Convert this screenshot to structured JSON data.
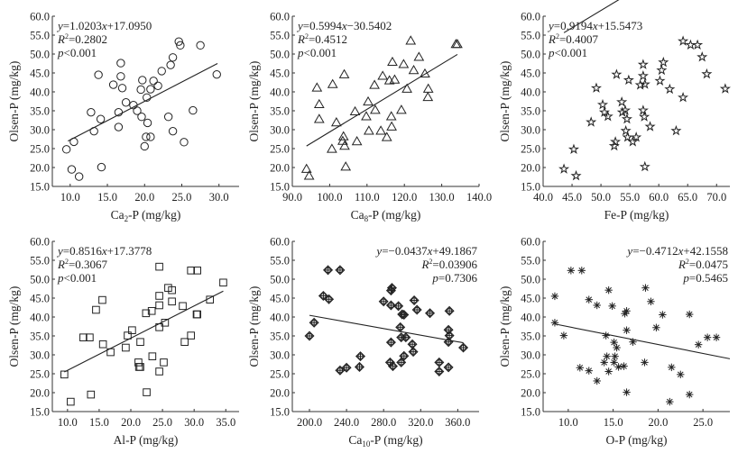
{
  "chart_data": [
    {
      "type": "scatter",
      "xlabel": "Ca2-P (mg/kg)",
      "xlabel_main": "Ca",
      "xlabel_sub": "2",
      "xlabel_rest": "-P (mg/kg)",
      "ylabel": "Olsen-P (mg/kg)",
      "xlim": [
        7.6,
        32.7
      ],
      "ylim": [
        15,
        60
      ],
      "xticks": [
        "10.0",
        "15.0",
        "20.0",
        "25.0",
        "30.0"
      ],
      "yticks": [
        "15.0",
        "20.0",
        "25.0",
        "30.0",
        "35.0",
        "40.0",
        "45.0",
        "50.0",
        "55.0",
        "60.0"
      ],
      "marker": "circle",
      "equation": "y=1.0203x+17.0950",
      "r2": "R2=0.2802",
      "p": "p<0.001",
      "annotation_position": "top-left",
      "fit": {
        "slope": 1.0203,
        "intercept": 17.095,
        "x_range": [
          9.7,
          29.8
        ]
      },
      "points": [
        [
          9.5,
          24.8
        ],
        [
          10.2,
          19.5
        ],
        [
          10.5,
          26.8
        ],
        [
          11.2,
          17.6
        ],
        [
          12.8,
          34.6
        ],
        [
          13.2,
          29.6
        ],
        [
          13.8,
          44.5
        ],
        [
          14.1,
          32.8
        ],
        [
          14.2,
          20.1
        ],
        [
          15.8,
          41.9
        ],
        [
          16.5,
          34.6
        ],
        [
          16.5,
          30.7
        ],
        [
          16.8,
          44.1
        ],
        [
          16.8,
          47.6
        ],
        [
          17.0,
          41.0
        ],
        [
          17.5,
          37.2
        ],
        [
          18.5,
          36.5
        ],
        [
          19.0,
          35.0
        ],
        [
          19.5,
          40.6
        ],
        [
          19.6,
          33.4
        ],
        [
          19.7,
          43.1
        ],
        [
          20.0,
          25.6
        ],
        [
          20.2,
          28.1
        ],
        [
          20.3,
          38.5
        ],
        [
          20.4,
          31.8
        ],
        [
          20.8,
          40.7
        ],
        [
          20.8,
          28.1
        ],
        [
          21.2,
          42.9
        ],
        [
          21.8,
          41.6
        ],
        [
          22.3,
          45.5
        ],
        [
          23.2,
          33.4
        ],
        [
          23.5,
          47.1
        ],
        [
          23.8,
          29.6
        ],
        [
          23.8,
          49.1
        ],
        [
          24.6,
          53.3
        ],
        [
          24.8,
          52.3
        ],
        [
          25.3,
          26.7
        ],
        [
          26.5,
          35.1
        ],
        [
          27.5,
          52.3
        ],
        [
          29.7,
          44.6
        ]
      ]
    },
    {
      "type": "scatter",
      "xlabel": "Ca8-P (mg/kg)",
      "xlabel_main": "Ca",
      "xlabel_sub": "8",
      "xlabel_rest": "-P (mg/kg)",
      "ylabel": "Olsen-P (mg/kg)",
      "xlim": [
        90,
        140
      ],
      "ylim": [
        15,
        60
      ],
      "xticks": [
        "90.0",
        "100.0",
        "110.0",
        "120.0",
        "130.0",
        "140.0"
      ],
      "yticks": [
        "15.0",
        "20.0",
        "25.0",
        "30.0",
        "35.0",
        "40.0",
        "45.0",
        "50.0",
        "55.0",
        "60.0"
      ],
      "marker": "triangle",
      "equation": "y=0.5994x−30.5402",
      "r2": "R2=0.4512",
      "p": "p<0.001",
      "annotation_position": "top-left",
      "fit": {
        "slope": 0.5994,
        "intercept": -30.5402,
        "x_range": [
          93.8,
          134.2
        ]
      },
      "points": [
        [
          93.8,
          19.6
        ],
        [
          94.5,
          17.8
        ],
        [
          96.6,
          41.1
        ],
        [
          97.2,
          36.7
        ],
        [
          97.2,
          32.8
        ],
        [
          100.6,
          24.9
        ],
        [
          100.8,
          42.0
        ],
        [
          101.8,
          31.9
        ],
        [
          103.5,
          27.0
        ],
        [
          103.7,
          28.2
        ],
        [
          103.9,
          44.6
        ],
        [
          104.0,
          25.7
        ],
        [
          104.3,
          20.2
        ],
        [
          106.8,
          34.8
        ],
        [
          107.3,
          26.9
        ],
        [
          109.8,
          33.5
        ],
        [
          110.3,
          37.4
        ],
        [
          110.5,
          29.7
        ],
        [
          112.0,
          41.8
        ],
        [
          112.2,
          35.2
        ],
        [
          113.7,
          29.7
        ],
        [
          114.2,
          44.2
        ],
        [
          115.3,
          28.0
        ],
        [
          116.0,
          43.0
        ],
        [
          116.5,
          33.5
        ],
        [
          116.6,
          30.8
        ],
        [
          116.8,
          47.9
        ],
        [
          117.4,
          43.2
        ],
        [
          119.2,
          35.2
        ],
        [
          119.8,
          47.3
        ],
        [
          120.7,
          40.8
        ],
        [
          121.7,
          53.5
        ],
        [
          122.5,
          45.7
        ],
        [
          123.9,
          49.2
        ],
        [
          125.5,
          44.8
        ],
        [
          126.3,
          38.6
        ],
        [
          126.4,
          40.8
        ],
        [
          133.8,
          52.6
        ],
        [
          134.2,
          52.6
        ]
      ]
    },
    {
      "type": "scatter",
      "xlabel": "Fe-P (mg/kg)",
      "xlabel_main": "Fe-P (mg/kg)",
      "xlabel_sub": "",
      "xlabel_rest": "",
      "ylabel": "Olsen-P (mg/kg)",
      "xlim": [
        40,
        72.3
      ],
      "ylim": [
        15,
        60
      ],
      "xticks": [
        "40.0",
        "45.0",
        "50.0",
        "55.0",
        "60.0",
        "65.0",
        "70.0"
      ],
      "yticks": [
        "15.0",
        "20.0",
        "25.0",
        "30.0",
        "35.0",
        "40.0",
        "45.0",
        "50.0",
        "55.0",
        "60.0"
      ],
      "marker": "star",
      "equation": "y=0.9194x+15.5473",
      "r2": "R2=0.4007",
      "p": "p<0.001",
      "annotation_position": "top-left",
      "fit": {
        "slope": 0.9194,
        "intercept": 15.5473,
        "x_range": [
          43.6,
          71.5
        ]
      },
      "points": [
        [
          43.6,
          19.6
        ],
        [
          45.3,
          24.8
        ],
        [
          45.7,
          17.8
        ],
        [
          48.3,
          32.0
        ],
        [
          49.2,
          41.0
        ],
        [
          50.3,
          36.6
        ],
        [
          50.6,
          34.6
        ],
        [
          51.2,
          33.5
        ],
        [
          52.3,
          25.7
        ],
        [
          52.5,
          26.8
        ],
        [
          52.7,
          44.6
        ],
        [
          53.6,
          37.3
        ],
        [
          53.7,
          34.6
        ],
        [
          54.2,
          35.1
        ],
        [
          54.3,
          29.7
        ],
        [
          54.5,
          32.8
        ],
        [
          54.6,
          28.0
        ],
        [
          54.8,
          43.1
        ],
        [
          55.5,
          26.8
        ],
        [
          56.1,
          28.0
        ],
        [
          56.8,
          41.8
        ],
        [
          57.3,
          47.2
        ],
        [
          57.3,
          44.2
        ],
        [
          57.3,
          35.1
        ],
        [
          57.5,
          33.4
        ],
        [
          57.6,
          42.0
        ],
        [
          57.6,
          20.2
        ],
        [
          58.5,
          30.8
        ],
        [
          60.2,
          42.9
        ],
        [
          60.5,
          45.7
        ],
        [
          60.8,
          47.8
        ],
        [
          61.9,
          40.7
        ],
        [
          63.0,
          29.7
        ],
        [
          64.2,
          38.5
        ],
        [
          64.2,
          53.4
        ],
        [
          65.5,
          52.4
        ],
        [
          66.7,
          52.4
        ],
        [
          67.5,
          49.2
        ],
        [
          68.3,
          44.7
        ],
        [
          71.5,
          40.8
        ]
      ]
    },
    {
      "type": "scatter",
      "xlabel": "Al-P (mg/kg)",
      "xlabel_main": "Al-P (mg/kg)",
      "xlabel_sub": "",
      "xlabel_rest": "",
      "ylabel": "Olsen-P (mg/kg)",
      "xlim": [
        7.6,
        37.1
      ],
      "ylim": [
        15,
        60
      ],
      "xticks": [
        "10.0",
        "15.0",
        "20.0",
        "25.0",
        "30.0",
        "35.0"
      ],
      "yticks": [
        "15.0",
        "20.0",
        "25.0",
        "30.0",
        "35.0",
        "40.0",
        "45.0",
        "50.0",
        "55.0",
        "60.0"
      ],
      "marker": "square",
      "equation": "y=0.8516x+17.3778",
      "r2": "R2=0.3067",
      "p": "p<0.001",
      "annotation_position": "top-left",
      "fit": {
        "slope": 0.8516,
        "intercept": 17.3778,
        "x_range": [
          9.5,
          34.6
        ]
      },
      "points": [
        [
          9.5,
          24.8
        ],
        [
          10.5,
          17.6
        ],
        [
          12.5,
          34.6
        ],
        [
          13.5,
          34.6
        ],
        [
          13.7,
          19.5
        ],
        [
          14.5,
          41.9
        ],
        [
          15.5,
          44.5
        ],
        [
          15.6,
          32.8
        ],
        [
          16.8,
          30.7
        ],
        [
          19.2,
          31.9
        ],
        [
          19.5,
          35.1
        ],
        [
          20.2,
          36.5
        ],
        [
          21.2,
          28.0
        ],
        [
          21.3,
          26.8
        ],
        [
          21.5,
          26.8
        ],
        [
          21.5,
          33.4
        ],
        [
          22.4,
          41.0
        ],
        [
          22.5,
          20.1
        ],
        [
          23.3,
          41.6
        ],
        [
          23.4,
          29.6
        ],
        [
          24.5,
          53.3
        ],
        [
          24.5,
          45.6
        ],
        [
          24.5,
          43.1
        ],
        [
          24.5,
          37.3
        ],
        [
          24.5,
          25.6
        ],
        [
          25.2,
          28.0
        ],
        [
          25.4,
          38.5
        ],
        [
          25.9,
          47.7
        ],
        [
          26.5,
          47.1
        ],
        [
          26.5,
          44.1
        ],
        [
          28.2,
          42.9
        ],
        [
          28.5,
          33.4
        ],
        [
          29.5,
          52.3
        ],
        [
          29.5,
          35.1
        ],
        [
          30.4,
          40.7
        ],
        [
          30.5,
          52.3
        ],
        [
          30.5,
          40.7
        ],
        [
          32.5,
          44.6
        ],
        [
          34.6,
          49.1
        ]
      ]
    },
    {
      "type": "scatter",
      "xlabel": "Ca10-P (mg/kg)",
      "xlabel_main": "Ca",
      "xlabel_sub": "10",
      "xlabel_rest": "-P (mg/kg)",
      "ylabel": "Olsen-P (mg/kg)",
      "xlim": [
        181.5,
        383
      ],
      "ylim": [
        15,
        60
      ],
      "xticks": [
        "200.0",
        "240.0",
        "280.0",
        "320.0",
        "360.0"
      ],
      "yticks": [
        "15.0",
        "20.0",
        "25.0",
        "30.0",
        "35.0",
        "40.0",
        "45.0",
        "50.0",
        "55.0",
        "60.0"
      ],
      "marker": "diamond-plus",
      "equation": "y=−0.0437x+49.1867",
      "r2": "R2=0.03906",
      "p": "p=0.7306",
      "annotation_position": "top-right",
      "fit": {
        "slope": -0.0437,
        "intercept": 49.1867,
        "x_range": [
          200,
          366
        ]
      },
      "points": [
        [
          200,
          35.0
        ],
        [
          205,
          38.5
        ],
        [
          215,
          45.6
        ],
        [
          220,
          52.4
        ],
        [
          221,
          44.7
        ],
        [
          233,
          52.4
        ],
        [
          233,
          25.9
        ],
        [
          240,
          26.6
        ],
        [
          254,
          26.8
        ],
        [
          255,
          29.6
        ],
        [
          280,
          44.1
        ],
        [
          287,
          28.0
        ],
        [
          288,
          33.3
        ],
        [
          288,
          43.1
        ],
        [
          288,
          47.0
        ],
        [
          289,
          47.7
        ],
        [
          290,
          27.0
        ],
        [
          296,
          42.9
        ],
        [
          298,
          37.3
        ],
        [
          299,
          34.6
        ],
        [
          299,
          28.0
        ],
        [
          300,
          40.7
        ],
        [
          302,
          40.6
        ],
        [
          302,
          29.7
        ],
        [
          304,
          34.6
        ],
        [
          311,
          32.8
        ],
        [
          312,
          30.8
        ],
        [
          313,
          44.4
        ],
        [
          316,
          41.9
        ],
        [
          330,
          41.0
        ],
        [
          340,
          28.0
        ],
        [
          340,
          25.6
        ],
        [
          350,
          26.7
        ],
        [
          350,
          33.4
        ],
        [
          350,
          36.6
        ],
        [
          351,
          35.1
        ],
        [
          351,
          41.6
        ],
        [
          366,
          31.9
        ]
      ]
    },
    {
      "type": "scatter",
      "xlabel": "O-P (mg/kg)",
      "xlabel_main": "O-P (mg/kg)",
      "xlabel_sub": "",
      "xlabel_rest": "",
      "ylabel": "Olsen-P (mg/kg)",
      "xlim": [
        7.2,
        28.0
      ],
      "ylim": [
        15,
        60
      ],
      "xticks": [
        "10.0",
        "15.0",
        "20.0",
        "25.0"
      ],
      "yticks": [
        "15.0",
        "20.0",
        "25.0",
        "30.0",
        "35.0",
        "40.0",
        "45.0",
        "50.0",
        "55.0",
        "60.0"
      ],
      "marker": "asterisk",
      "equation": "y=−0.4712x+42.1558",
      "r2": "R2=0.0475",
      "p": "p=0.5465",
      "annotation_position": "top-right",
      "fit": {
        "slope": -0.4712,
        "intercept": 42.1558,
        "x_range": [
          8.5,
          28.0
        ]
      },
      "points": [
        [
          8.5,
          45.5
        ],
        [
          8.5,
          38.5
        ],
        [
          9.5,
          35.1
        ],
        [
          10.3,
          52.3
        ],
        [
          11.3,
          26.6
        ],
        [
          11.5,
          52.3
        ],
        [
          12.3,
          44.6
        ],
        [
          12.3,
          25.8
        ],
        [
          13.2,
          43.1
        ],
        [
          13.2,
          23.1
        ],
        [
          14.0,
          28.0
        ],
        [
          14.2,
          35.1
        ],
        [
          14.3,
          29.6
        ],
        [
          14.5,
          47.1
        ],
        [
          14.5,
          25.6
        ],
        [
          14.9,
          42.9
        ],
        [
          15.1,
          33.3
        ],
        [
          15.1,
          28.0
        ],
        [
          15.2,
          29.6
        ],
        [
          15.4,
          31.9
        ],
        [
          15.6,
          26.8
        ],
        [
          16.2,
          27.0
        ],
        [
          16.3,
          40.9
        ],
        [
          16.5,
          41.6
        ],
        [
          16.5,
          36.5
        ],
        [
          16.5,
          20.1
        ],
        [
          17.2,
          33.4
        ],
        [
          18.5,
          28.0
        ],
        [
          18.6,
          47.7
        ],
        [
          19.2,
          44.1
        ],
        [
          19.8,
          37.2
        ],
        [
          20.5,
          40.6
        ],
        [
          21.3,
          17.6
        ],
        [
          21.5,
          26.7
        ],
        [
          22.5,
          24.8
        ],
        [
          23.5,
          40.7
        ],
        [
          23.5,
          19.5
        ],
        [
          24.5,
          32.7
        ],
        [
          25.5,
          34.6
        ],
        [
          26.5,
          34.6
        ]
      ]
    }
  ]
}
